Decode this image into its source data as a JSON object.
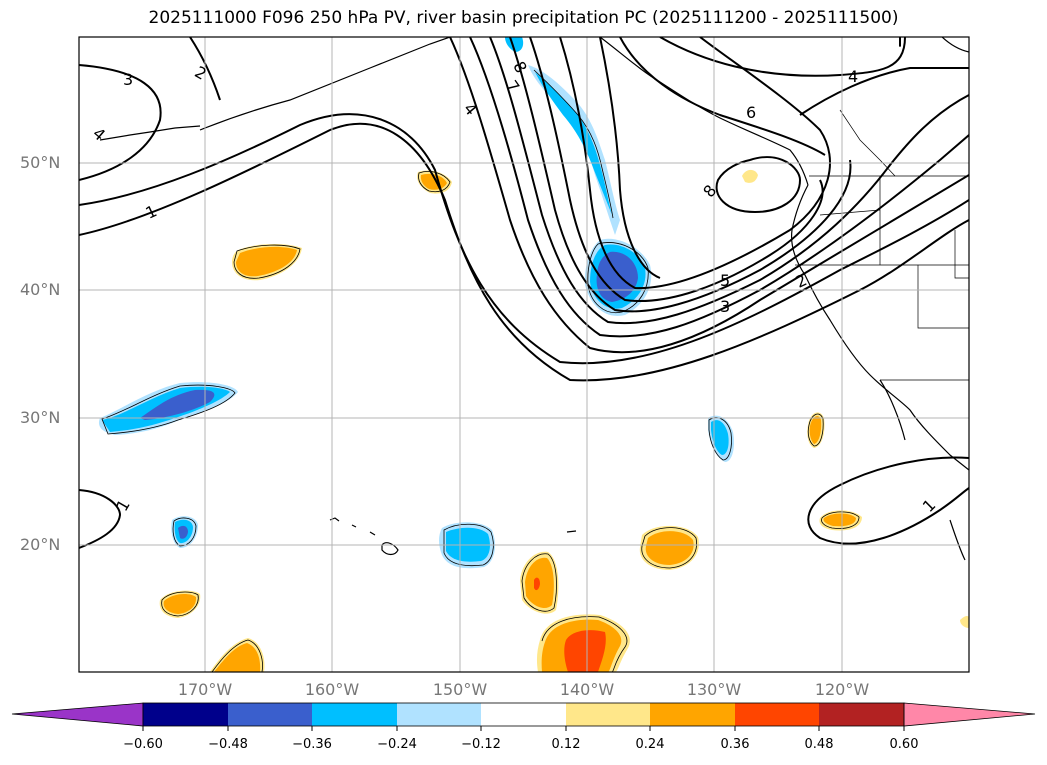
{
  "title": "2025111000 F096 250 hPa PV, river basin precipitation PC (2025111200 - 2025111500)",
  "lat_labels": [
    "50°N",
    "40°N",
    "30°N",
    "20°N"
  ],
  "lon_labels": [
    "170°W",
    "160°W",
    "150°W",
    "140°W",
    "130°W",
    "120°W"
  ],
  "contour_labels": [
    "3",
    "2",
    "4",
    "1",
    "7",
    "8",
    "4",
    "6",
    "4",
    "8",
    "5",
    "3",
    "2",
    "1",
    "1"
  ],
  "colorbar": {
    "ticks": [
      "−0.60",
      "−0.48",
      "−0.36",
      "−0.24",
      "−0.12",
      "0.12",
      "0.24",
      "0.36",
      "0.48",
      "0.60"
    ],
    "colors": [
      "#9a34c8",
      "#00008b",
      "#3a5fcd",
      "#00bfff",
      "#b0e2ff",
      "#ffffff",
      "#ffe78a",
      "#ffa500",
      "#ff4500",
      "#b22222",
      "#ff87a8"
    ]
  },
  "colors": {
    "ocean": "#ffffff",
    "grid": "#b4b4b4",
    "contour": "#000000",
    "label_gray": "#777777"
  }
}
